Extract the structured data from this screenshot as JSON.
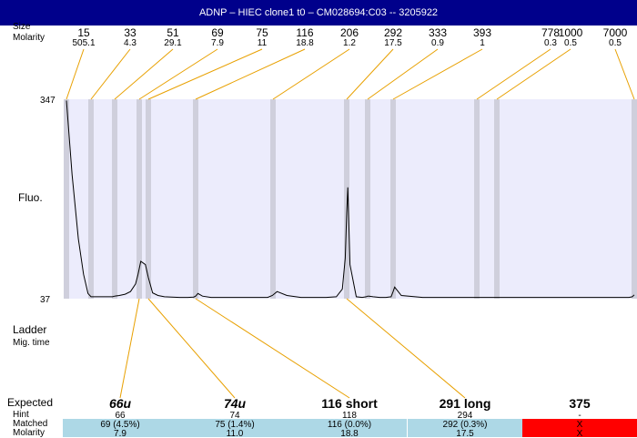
{
  "window": {
    "title": "ADNP – HIEC clone1 t0 – CM028694:C03 -- 3205922"
  },
  "row_labels": {
    "size": "Size",
    "molarity": "Molarity",
    "fluo": "Fluo.",
    "ladder": "Ladder",
    "mig_time": "Mig. time",
    "expected": "Expected",
    "hint": "Hint",
    "matched": "Matched",
    "molarity_bottom": "Molarity"
  },
  "colors": {
    "title_bg": "#00008b",
    "plot_bg": "#ececfc",
    "band": "#cfcfdc",
    "connector": "#e8a000",
    "match_ok": "#add8e6",
    "match_fail": "#ff0000"
  },
  "chart_data": {
    "type": "line",
    "ylim": [
      37,
      347
    ],
    "y_ticks": [
      "347",
      "37"
    ],
    "ylabel": "Fluo.",
    "ladder": [
      {
        "size": "15",
        "molarity": "505.1"
      },
      {
        "size": "33",
        "molarity": "4.3"
      },
      {
        "size": "51",
        "molarity": "29.1"
      },
      {
        "size": "69",
        "molarity": "7.9"
      },
      {
        "size": "75",
        "molarity": "11"
      },
      {
        "size": "116",
        "molarity": "18.8"
      },
      {
        "size": "206",
        "molarity": "1.2"
      },
      {
        "size": "292",
        "molarity": "17.5"
      },
      {
        "size": "333",
        "molarity": "0.9"
      },
      {
        "size": "393",
        "molarity": "1"
      },
      {
        "size": "778",
        "molarity": "0.3"
      },
      {
        "size": "1000",
        "molarity": "0.5"
      },
      {
        "size": "7000",
        "molarity": "0.5"
      }
    ],
    "trace": {
      "x": [
        15,
        18,
        22,
        26,
        30,
        33,
        40,
        45,
        49,
        51,
        54,
        58,
        62,
        66,
        68,
        70,
        73,
        75,
        78,
        82,
        87,
        93,
        100,
        108,
        114,
        116,
        118,
        122,
        130,
        140,
        155,
        170,
        185,
        198,
        205,
        210,
        220,
        235,
        250,
        265,
        278,
        286,
        290,
        292,
        294,
        298,
        310,
        322,
        330,
        333,
        336,
        345,
        360,
        375,
        388,
        393,
        398,
        420,
        500,
        600,
        700,
        778,
        820,
        900,
        1000,
        1100,
        1500,
        2500,
        4000,
        6000,
        6500,
        6800,
        7000
      ],
      "y": [
        345,
        230,
        130,
        75,
        45,
        40,
        40,
        40,
        40,
        41,
        42,
        44,
        48,
        60,
        75,
        95,
        90,
        70,
        46,
        42,
        40,
        39.5,
        39,
        39,
        39.5,
        41,
        45,
        41,
        39,
        39,
        39,
        39,
        39,
        39,
        42,
        48,
        42,
        39,
        39,
        39,
        40,
        52,
        100,
        170,
        210,
        90,
        40,
        39,
        40,
        41,
        41,
        40,
        39,
        39,
        40,
        48,
        55,
        42,
        39,
        39,
        39,
        39,
        39,
        39,
        39,
        39,
        39,
        39,
        39,
        39,
        39,
        40,
        43
      ],
      "x_fixed_anchors": [
        15,
        17.5,
        20,
        22.5,
        25,
        27.5,
        30,
        32.5,
        35,
        37.5,
        40,
        42.5,
        45,
        47.5,
        50,
        52.5,
        55,
        57.5,
        60,
        62.5,
        65,
        67.5,
        70,
        72.5,
        75,
        77.5,
        80,
        82.5,
        85,
        87.5,
        90,
        92.5,
        95,
        97.5,
        100,
        102.5,
        105,
        107.5,
        110,
        112.5,
        115,
        117.5,
        120,
        122.5,
        125,
        127.5,
        130,
        132.5,
        135,
        137.5,
        140,
        142.5,
        145,
        147.5,
        150,
        152.5,
        155,
        157.5,
        160,
        162.5,
        165,
        167.5,
        170,
        172.5,
        175,
        177.5,
        180,
        182.5,
        185,
        187.5,
        190,
        192.5,
        195,
        197.5,
        200,
        202.5,
        205,
        207.5,
        210,
        212.5,
        215,
        217.5,
        220,
        222.5,
        225,
        227.5,
        230,
        232.5,
        235,
        237.5,
        240,
        242.5,
        245,
        247.5,
        250,
        252.5,
        255,
        257.5,
        260,
        262.5,
        265,
        267.5,
        270,
        272.5,
        275,
        277.5,
        280,
        282.5,
        285,
        287.5,
        290,
        292.5,
        295,
        297.5,
        300
      ]
    },
    "expected": [
      {
        "label": "66u",
        "hint": "66",
        "matched": "69 (4.5%)",
        "molarity": "7.9",
        "status": "ok"
      },
      {
        "label": "74u",
        "hint": "74",
        "matched": "75 (1.4%)",
        "molarity": "11.0",
        "status": "ok"
      },
      {
        "label": "116 short",
        "hint": "118",
        "matched": "116 (0.0%)",
        "molarity": "18.8",
        "status": "ok"
      },
      {
        "label": "291 long",
        "hint": "294",
        "matched": "292 (0.3%)",
        "molarity": "17.5",
        "status": "ok"
      },
      {
        "label": "375",
        "hint": "-",
        "matched": "X",
        "molarity": "X",
        "status": "fail"
      }
    ]
  }
}
